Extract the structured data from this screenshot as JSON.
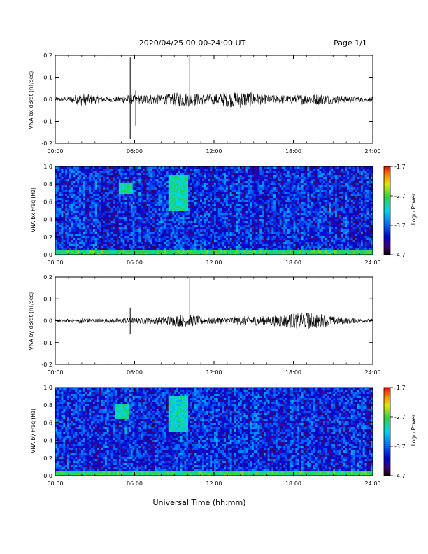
{
  "header": {
    "title": "2020/04/25  00:00-24:00 UT",
    "page": "Page 1/1"
  },
  "xaxis": {
    "label": "Universal Time (hh:mm)",
    "ticks": [
      "00:00",
      "06:00",
      "12:00",
      "18:00",
      "24:00"
    ]
  },
  "colorbar": {
    "label": "Log₁₀ Power",
    "ticks": [
      "-1.7",
      "-2.7",
      "-3.7",
      "-4.7"
    ]
  },
  "chart_data": [
    {
      "type": "line",
      "ylabel": "VNA bx dB/dt (nT/sec)",
      "ylim": [
        -0.2,
        0.2
      ],
      "yticks": [
        "0.2",
        "0.1",
        "0.0",
        "-0.1",
        "-0.2"
      ],
      "xlim": [
        "00:00",
        "24:00"
      ],
      "baseline": 0.0,
      "noise_envelope": {
        "x_hours": [
          0,
          1,
          2,
          3,
          4,
          5,
          5.5,
          6,
          7,
          8,
          9,
          10,
          11,
          12,
          13,
          14,
          15,
          16,
          17,
          18,
          19,
          20,
          21,
          22,
          23,
          24
        ],
        "amplitude": [
          0.008,
          0.012,
          0.03,
          0.02,
          0.012,
          0.015,
          0.02,
          0.02,
          0.025,
          0.02,
          0.03,
          0.035,
          0.025,
          0.025,
          0.035,
          0.04,
          0.03,
          0.02,
          0.02,
          0.02,
          0.025,
          0.025,
          0.02,
          0.015,
          0.012,
          0.01
        ]
      },
      "spikes": [
        {
          "x": "05:40",
          "max": 0.19,
          "min": -0.18
        },
        {
          "x": "06:05",
          "max": 0.04,
          "min": -0.12
        },
        {
          "x": "10:10",
          "max": 0.2,
          "min": -0.02
        }
      ]
    },
    {
      "type": "heatmap",
      "ylabel": "VNA bx Freq (Hz)",
      "ylim": [
        0.0,
        1.0
      ],
      "yticks": [
        "1.0",
        "0.8",
        "0.6",
        "0.4",
        "0.2",
        "0.0"
      ],
      "xlim": [
        "00:00",
        "24:00"
      ],
      "zlim": [
        -4.7,
        -1.7
      ],
      "features": [
        {
          "x_hours": [
            0,
            24
          ],
          "freq_hz": [
            0.0,
            0.05
          ],
          "log_power": -2.8
        },
        {
          "x_hours": [
            4.8,
            5.8
          ],
          "freq_hz": [
            0.7,
            0.8
          ],
          "log_power": -3.0
        },
        {
          "x_hours": [
            8.5,
            10.0
          ],
          "freq_hz": [
            0.5,
            0.9
          ],
          "log_power": -3.0
        }
      ]
    },
    {
      "type": "line",
      "ylabel": "VNA by dB/dt (nT/sec)",
      "ylim": [
        -0.2,
        0.2
      ],
      "yticks": [
        "0.2",
        "0.1",
        "0.0",
        "-0.1",
        "-0.2"
      ],
      "xlim": [
        "00:00",
        "24:00"
      ],
      "baseline": 0.0,
      "noise_envelope": {
        "x_hours": [
          0,
          1,
          2,
          3,
          4,
          5,
          5.5,
          6,
          7,
          8,
          9,
          10,
          11,
          12,
          13,
          14,
          15,
          16,
          17,
          18,
          19,
          20,
          21,
          22,
          23,
          24
        ],
        "amplitude": [
          0.006,
          0.008,
          0.012,
          0.01,
          0.01,
          0.012,
          0.015,
          0.012,
          0.015,
          0.018,
          0.025,
          0.03,
          0.02,
          0.015,
          0.018,
          0.02,
          0.022,
          0.02,
          0.03,
          0.035,
          0.04,
          0.035,
          0.02,
          0.015,
          0.01,
          0.008
        ]
      },
      "spikes": [
        {
          "x": "05:40",
          "max": 0.06,
          "min": -0.06
        },
        {
          "x": "10:10",
          "max": 0.2,
          "min": -0.01
        }
      ]
    },
    {
      "type": "heatmap",
      "ylabel": "VNA by Freq (Hz)",
      "ylim": [
        0.0,
        1.0
      ],
      "yticks": [
        "1.0",
        "0.8",
        "0.6",
        "0.4",
        "0.2",
        "0.0"
      ],
      "xlim": [
        "00:00",
        "24:00"
      ],
      "zlim": [
        -4.7,
        -1.7
      ],
      "features": [
        {
          "x_hours": [
            0,
            24
          ],
          "freq_hz": [
            0.0,
            0.05
          ],
          "log_power": -2.8
        },
        {
          "x_hours": [
            4.5,
            5.5
          ],
          "freq_hz": [
            0.65,
            0.8
          ],
          "log_power": -3.0
        },
        {
          "x_hours": [
            8.5,
            10.0
          ],
          "freq_hz": [
            0.5,
            0.9
          ],
          "log_power": -3.1
        }
      ]
    }
  ]
}
